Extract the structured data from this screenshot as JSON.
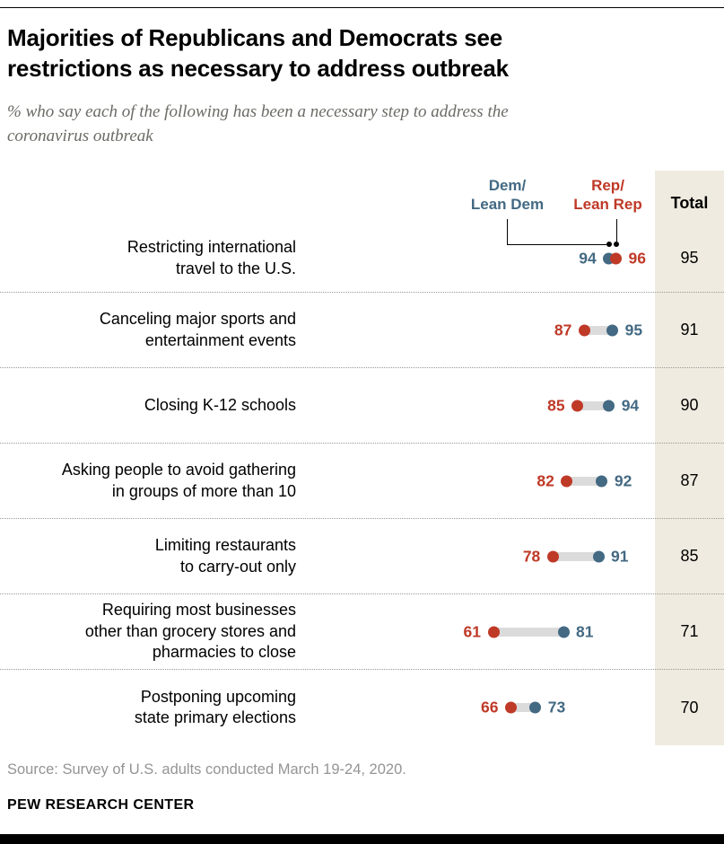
{
  "chart_data": {
    "type": "dumbbell",
    "title": "Majorities of Republicans and Democrats see\nrestrictions as necessary to address outbreak",
    "subtitle": "% who say each of the following has been a necessary step to address the\ncoronavirus outbreak",
    "legend": {
      "dem": "Dem/\nLean Dem",
      "rep": "Rep/\nLean Rep",
      "total": "Total"
    },
    "value_domain": [
      61,
      96
    ],
    "rows": [
      {
        "label_lines": [
          "Restricting international",
          "travel to the U.S."
        ],
        "dem": 94,
        "rep": 96,
        "total": 95
      },
      {
        "label_lines": [
          "Canceling major sports and",
          "entertainment events"
        ],
        "dem": 95,
        "rep": 87,
        "total": 91
      },
      {
        "label_lines": [
          "Closing K-12 schools"
        ],
        "dem": 94,
        "rep": 85,
        "total": 90
      },
      {
        "label_lines": [
          "Asking people to avoid gathering",
          "in groups of more than 10"
        ],
        "dem": 92,
        "rep": 82,
        "total": 87
      },
      {
        "label_lines": [
          "Limiting restaurants",
          "to carry-out only"
        ],
        "dem": 91,
        "rep": 78,
        "total": 85
      },
      {
        "label_lines": [
          "Requiring most businesses",
          "other than grocery stores and",
          "pharmacies to close"
        ],
        "dem": 81,
        "rep": 61,
        "total": 71
      },
      {
        "label_lines": [
          "Postponing upcoming",
          "state primary elections"
        ],
        "dem": 73,
        "rep": 66,
        "total": 70
      }
    ],
    "colors": {
      "dem": "#436983",
      "rep": "#BF3927",
      "connector": "#DBDBDB",
      "total_bg": "#EFEBE0"
    },
    "source": "Source: Survey of U.S. adults conducted March 19-24, 2020.",
    "brand": "PEW RESEARCH CENTER"
  }
}
